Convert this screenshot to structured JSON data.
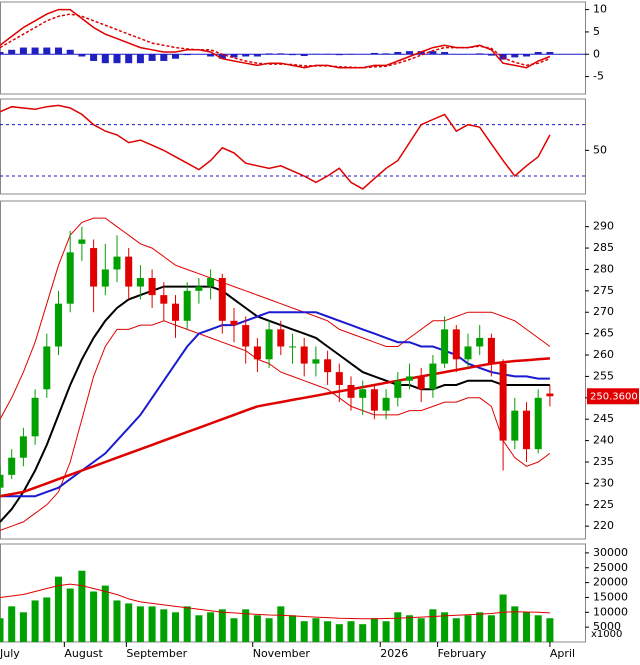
{
  "chart_data": [
    {
      "type": "macd",
      "ylim": [
        -8.9,
        11.7
      ],
      "yticks": [
        -5,
        0,
        5,
        10
      ],
      "xlim": [
        0,
        50
      ],
      "series": [
        {
          "color": "#e00000",
          "values": [
            2,
            4,
            6,
            7.5,
            9,
            10,
            10,
            8,
            6,
            4.5,
            3.5,
            2.5,
            1.5,
            1,
            0.5,
            0.5,
            1,
            1,
            0.5,
            -1,
            -1.5,
            -2,
            -2.5,
            -2,
            -2,
            -2.5,
            -3,
            -2.5,
            -2.5,
            -3,
            -3,
            -3,
            -2.5,
            -2.5,
            -1.5,
            -0.5,
            0.5,
            1.5,
            2,
            1.5,
            1.5,
            2,
            1,
            -2,
            -2.5,
            -3,
            -1.5,
            -0.5
          ]
        },
        {
          "color": "#e00000",
          "dash": true,
          "values": [
            1.5,
            3,
            4.5,
            6,
            7.5,
            8.5,
            9,
            8.5,
            7.5,
            6.5,
            5.5,
            4.5,
            3.5,
            2.5,
            2,
            1.5,
            1.2,
            1,
            1,
            0,
            -0.8,
            -1.5,
            -2,
            -2.2,
            -2.2,
            -2.3,
            -2.6,
            -2.6,
            -2.6,
            -2.8,
            -2.9,
            -3,
            -2.8,
            -2.7,
            -2,
            -1.2,
            -0.2,
            0.8,
            1.5,
            1.5,
            1.5,
            1.8,
            1.3,
            -0.8,
            -1.8,
            -2.5,
            -2,
            -1
          ]
        }
      ],
      "histogram": {
        "color": "#2020c0",
        "values": [
          0.5,
          1,
          1.5,
          1.5,
          1.5,
          1.5,
          1,
          -0.5,
          -1.5,
          -2,
          -2,
          -2,
          -2,
          -1.5,
          -1.5,
          -1,
          -0.2,
          0,
          -0.5,
          -1,
          -0.7,
          -0.5,
          -0.5,
          0.2,
          0.2,
          -0.2,
          -0.4,
          0.1,
          0.1,
          -0.2,
          -0.1,
          0,
          0.3,
          0.2,
          0.5,
          0.7,
          0.7,
          0.7,
          0.5,
          0,
          0,
          0.2,
          -0.3,
          -1.2,
          -0.7,
          -0.5,
          0.5,
          0.5
        ]
      }
    },
    {
      "type": "rsi",
      "ylim": [
        16,
        90
      ],
      "yticks": [
        50
      ],
      "levels": [
        30,
        70
      ],
      "xlim": [
        0,
        50
      ],
      "series": [
        {
          "color": "#e00000",
          "values": [
            80,
            84,
            83,
            82,
            84,
            85,
            83,
            78,
            70,
            65,
            62,
            56,
            58,
            54,
            50,
            45,
            40,
            35,
            42,
            52,
            48,
            40,
            38,
            36,
            38,
            34,
            30,
            25,
            30,
            36,
            25,
            20,
            28,
            36,
            42,
            56,
            70,
            74,
            78,
            65,
            70,
            68,
            55,
            42,
            30,
            38,
            45,
            62
          ]
        }
      ]
    },
    {
      "type": "candlestick",
      "ylim": [
        217,
        296
      ],
      "yticks": [
        220,
        225,
        230,
        235,
        240,
        245,
        250,
        255,
        260,
        265,
        270,
        275,
        280,
        285,
        290
      ],
      "xlim": [
        0,
        50
      ],
      "up_color": "#00a000",
      "down_color": "#e00000",
      "open": [
        229,
        232,
        236,
        241,
        252,
        262,
        272,
        286,
        285,
        276,
        280,
        283,
        276,
        278,
        274,
        272,
        268,
        275,
        276,
        278,
        268,
        267,
        262,
        259,
        266,
        262,
        262,
        258,
        259,
        256,
        253,
        250,
        252,
        247,
        250,
        254,
        255,
        252,
        258,
        266,
        259,
        262,
        264,
        258,
        240,
        247,
        238,
        251
      ],
      "high": [
        234,
        238,
        243,
        252,
        265,
        275,
        289,
        290,
        287,
        286,
        288,
        285,
        281,
        280,
        277,
        274,
        277,
        278,
        280,
        279,
        271,
        269,
        264,
        268,
        268,
        265,
        264,
        262,
        261,
        258,
        255,
        254,
        253,
        252,
        256,
        258,
        257,
        260,
        269,
        267,
        265,
        267,
        265,
        259,
        250,
        249,
        252,
        253
      ],
      "low": [
        227,
        231,
        234,
        239,
        250,
        260,
        270,
        282,
        270,
        274,
        277,
        273,
        273,
        271,
        268,
        264,
        266,
        272,
        273,
        265,
        263,
        258,
        256,
        257,
        260,
        258,
        255,
        255,
        253,
        249,
        247,
        246,
        245,
        245,
        248,
        252,
        249,
        250,
        257,
        256,
        257,
        260,
        255,
        233,
        238,
        235,
        237,
        248
      ],
      "close": [
        232,
        236,
        241,
        250,
        262,
        272,
        284,
        287,
        276,
        280,
        283,
        276,
        278,
        274,
        272,
        268,
        275,
        276,
        278,
        268,
        267,
        262,
        259,
        266,
        262,
        262,
        258,
        259,
        256,
        253,
        250,
        252,
        247,
        250,
        254,
        255,
        252,
        258,
        266,
        259,
        262,
        264,
        258,
        240,
        247,
        238,
        250,
        250.36
      ],
      "series": [
        {
          "color": "#e00000",
          "width": 1,
          "values": [
            245,
            250,
            256,
            263,
            272,
            281,
            288,
            291,
            292,
            292,
            290,
            288,
            286,
            285,
            283,
            281,
            280,
            279,
            278,
            277,
            276,
            275,
            274,
            273,
            272,
            271,
            270,
            269,
            268,
            266,
            265,
            264,
            263,
            262,
            262,
            264,
            266,
            268,
            268,
            269,
            270,
            270,
            270,
            269,
            268,
            266,
            264,
            262
          ]
        },
        {
          "color": "#e00000",
          "width": 1,
          "values": [
            219,
            220,
            221,
            223,
            225,
            228,
            235,
            245,
            255,
            262,
            266,
            266,
            267,
            267,
            268,
            267,
            266,
            265,
            264,
            263,
            262,
            261,
            259,
            258,
            256,
            255,
            254,
            253,
            252,
            250,
            248,
            247,
            246,
            246,
            246,
            247,
            247,
            248,
            249,
            249,
            250,
            250,
            248,
            240,
            236,
            234,
            235,
            237
          ]
        },
        {
          "color": "#000000",
          "width": 2,
          "values": [
            221,
            224,
            228,
            233,
            239,
            246,
            253,
            259,
            264,
            268,
            271,
            273,
            274,
            275,
            276,
            276,
            276,
            276,
            276,
            275,
            273,
            271,
            269,
            268,
            267,
            266,
            265,
            264,
            262,
            260,
            258,
            256,
            255,
            254,
            253,
            253,
            252,
            252,
            253,
            253,
            254,
            254,
            254,
            253,
            253,
            253,
            253,
            253
          ]
        },
        {
          "color": "#1a1ad0",
          "width": 2,
          "values": [
            227,
            227,
            227,
            227,
            228,
            229,
            231,
            233,
            235,
            237,
            240,
            243,
            246,
            250,
            254,
            258,
            262,
            265,
            266,
            267,
            267,
            268,
            269,
            270,
            270,
            270,
            270,
            270,
            269,
            268,
            267,
            266,
            265,
            264,
            263,
            263,
            262,
            262,
            261,
            260,
            258,
            257,
            256,
            255.5,
            255,
            255,
            254.5,
            254.5
          ]
        },
        {
          "color": "#e00000",
          "width": 2.5,
          "values": [
            227,
            227.5,
            228,
            229,
            230,
            231,
            232,
            233,
            234,
            235,
            236,
            237,
            238,
            239,
            240,
            241,
            242,
            243,
            244,
            245,
            246,
            247,
            248,
            248.5,
            249,
            249.5,
            250,
            250.5,
            251,
            251.5,
            252,
            252.5,
            253,
            253.5,
            254,
            254.5,
            255,
            255.5,
            256,
            256.5,
            257,
            257.5,
            258,
            258.3,
            258.6,
            258.8,
            259,
            259.2
          ]
        }
      ],
      "price_tag": {
        "value": 250.36,
        "label": "250.3600"
      }
    },
    {
      "type": "bar",
      "ylim": [
        0,
        33000
      ],
      "yticks": [
        5000,
        10000,
        15000,
        20000,
        25000,
        30000
      ],
      "y_label": "x1000",
      "xlim": [
        0,
        50
      ],
      "color": "#00a000",
      "values": [
        8000,
        12000,
        10000,
        14000,
        15000,
        22000,
        18000,
        24000,
        17000,
        19000,
        14000,
        13000,
        12000,
        12000,
        11000,
        10000,
        12000,
        9000,
        10000,
        11000,
        8000,
        11000,
        9000,
        8000,
        12000,
        9000,
        7000,
        8000,
        7000,
        6000,
        7000,
        6000,
        8000,
        7000,
        10000,
        9000,
        8000,
        11000,
        10000,
        8000,
        9000,
        10000,
        9000,
        16000,
        12000,
        10000,
        9000,
        8000
      ],
      "series": [
        {
          "color": "#e00000",
          "width": 1,
          "values": [
            15000,
            15500,
            16000,
            17000,
            18000,
            19000,
            19500,
            19000,
            18000,
            17000,
            16000,
            14500,
            13500,
            13000,
            12500,
            12000,
            11500,
            11000,
            10500,
            10000,
            9800,
            9500,
            9300,
            9100,
            9000,
            8800,
            8600,
            8400,
            8200,
            8000,
            7900,
            7800,
            7800,
            7900,
            8000,
            8200,
            8400,
            8600,
            8800,
            9000,
            9200,
            9400,
            9600,
            10000,
            10200,
            10100,
            10000,
            9800
          ]
        }
      ],
      "xticks": [
        {
          "value": -0.3,
          "label": "July"
        },
        {
          "value": 5.5,
          "label": "August"
        },
        {
          "value": 10.8,
          "label": "September"
        },
        {
          "value": 21.6,
          "label": "November"
        },
        {
          "value": 32.5,
          "label": "2026"
        },
        {
          "value": 37.4,
          "label": "February"
        },
        {
          "value": 47,
          "label": "April"
        }
      ]
    }
  ]
}
